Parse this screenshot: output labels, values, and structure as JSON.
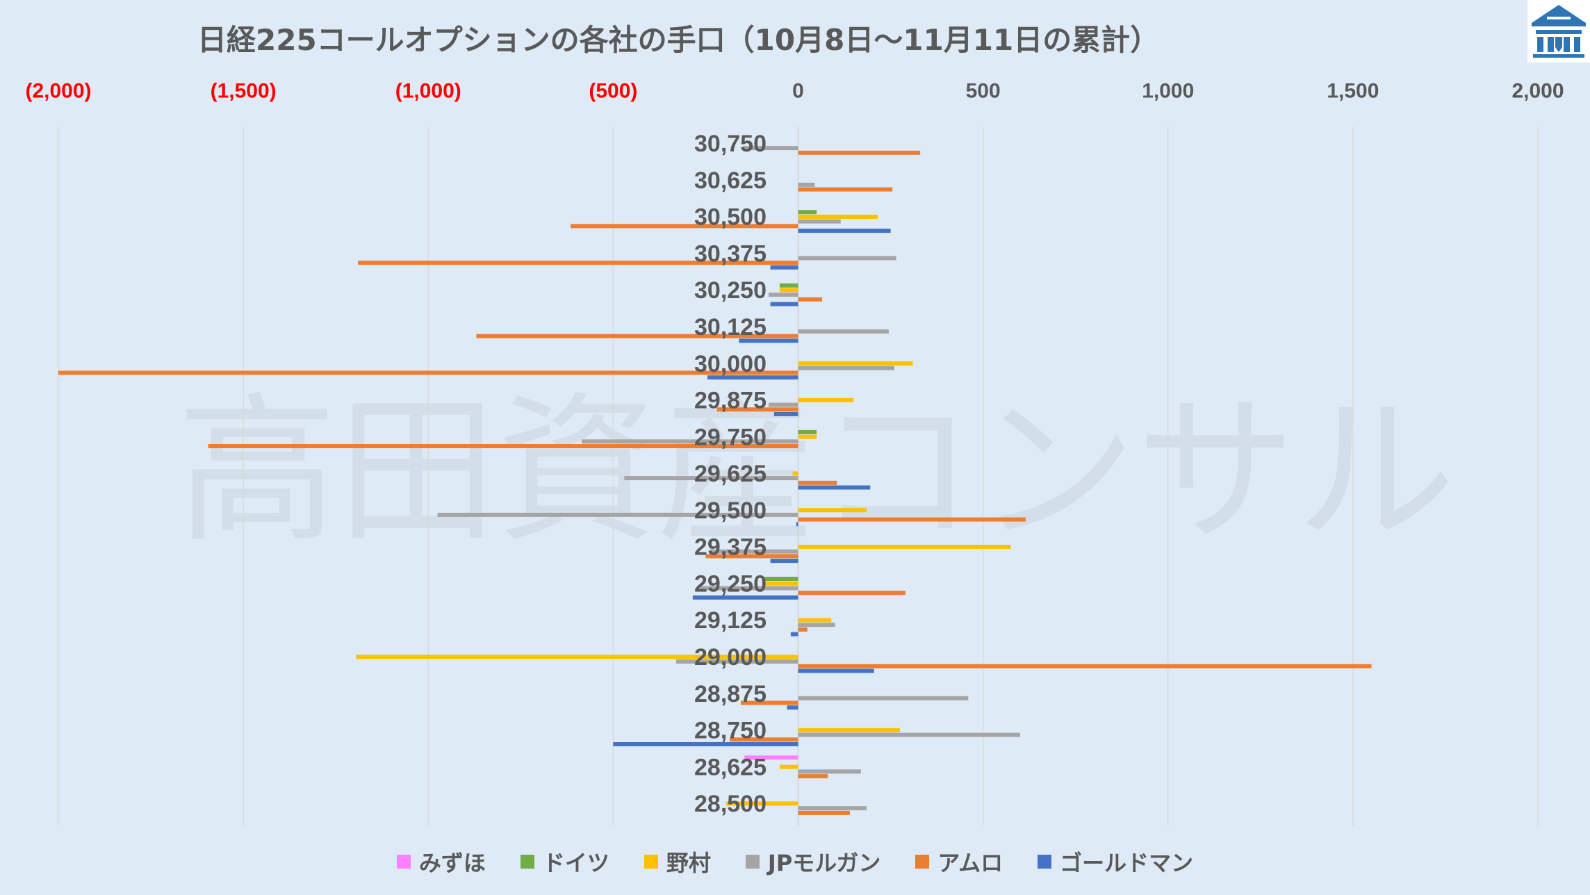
{
  "background_color": "#DEEBF7",
  "watermark": "高田資産コンサル",
  "logo": {
    "icon": "company-logo-icon",
    "color": "#2E75B6"
  },
  "chart_data": {
    "type": "bar",
    "horizontal": true,
    "title": "日経225コールオプションの各社の手口（10月8日～11月11日の累計）",
    "xlabel": "",
    "ylabel": "",
    "xlim": [
      -2000,
      2000
    ],
    "x_ticks": {
      "values": [
        -2000,
        -1500,
        -1000,
        -500,
        0,
        500,
        1000,
        1500,
        2000
      ],
      "labels": [
        "(2,000)",
        "(1,500)",
        "(1,000)",
        "(500)",
        "0",
        "500",
        "1,000",
        "1,500",
        "2,000"
      ]
    },
    "negative_tick_color": "#FF0000",
    "tick_color": "#595959",
    "grid": true,
    "legend_position": "bottom",
    "categories": [
      "30,750",
      "30,625",
      "30,500",
      "30,375",
      "30,250",
      "30,125",
      "30,000",
      "29,875",
      "29,750",
      "29,625",
      "29,500",
      "29,375",
      "29,250",
      "29,125",
      "29,000",
      "28,875",
      "28,750",
      "28,625",
      "28,500"
    ],
    "series": [
      {
        "name": "みずほ",
        "color": "#FF7FFF",
        "values": [
          null,
          null,
          null,
          null,
          null,
          null,
          null,
          null,
          null,
          null,
          null,
          null,
          null,
          null,
          null,
          null,
          null,
          -145,
          null
        ]
      },
      {
        "name": "ドイツ",
        "color": "#70AD47",
        "values": [
          null,
          null,
          50,
          null,
          -50,
          null,
          null,
          null,
          50,
          null,
          null,
          null,
          -95,
          null,
          null,
          null,
          null,
          null,
          null
        ]
      },
      {
        "name": "野村",
        "color": "#FFC000",
        "values": [
          null,
          null,
          215,
          null,
          -50,
          null,
          310,
          150,
          50,
          -15,
          185,
          575,
          -90,
          90,
          -1195,
          null,
          275,
          -50,
          -195
        ]
      },
      {
        "name": "JPモルガン",
        "color": "#A5A5A5",
        "values": [
          -150,
          45,
          115,
          265,
          -80,
          245,
          260,
          -80,
          -585,
          -470,
          -975,
          -240,
          -265,
          100,
          -330,
          460,
          600,
          170,
          185
        ]
      },
      {
        "name": "アムロ",
        "color": "#ED7D31",
        "values": [
          330,
          255,
          -615,
          -1190,
          65,
          -870,
          -2000,
          -220,
          -1595,
          105,
          615,
          -250,
          290,
          25,
          1550,
          -155,
          -185,
          80,
          140
        ]
      },
      {
        "name": "ゴールドマン",
        "color": "#4472C4",
        "values": [
          null,
          null,
          250,
          -75,
          -75,
          -160,
          -245,
          -65,
          null,
          195,
          -5,
          -75,
          -285,
          -20,
          205,
          -30,
          -500,
          null,
          null
        ]
      }
    ]
  }
}
